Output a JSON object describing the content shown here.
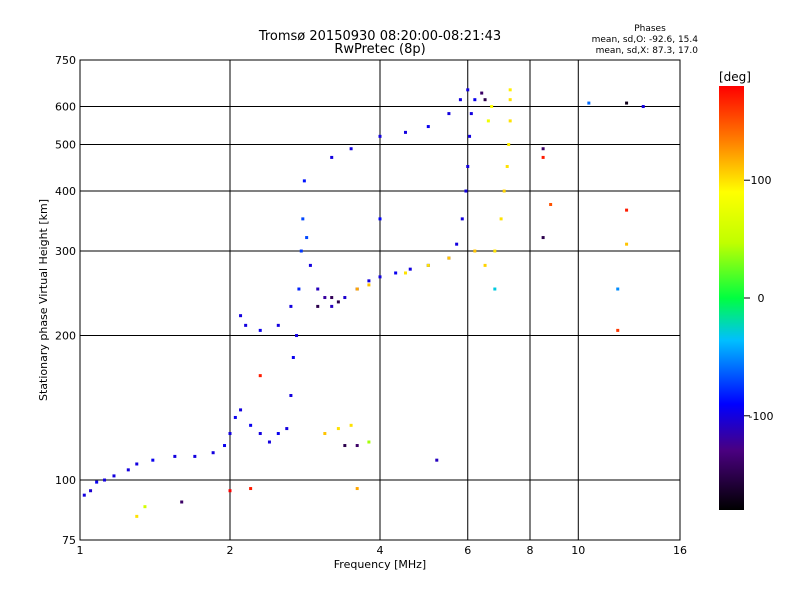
{
  "chart_data": {
    "type": "scatter",
    "title": "Tromsø 20150930 08:20:00-08:21:43",
    "subtitle": "RwPretec (8p)",
    "xlabel": "Frequency [MHz]",
    "ylabel": "Stationary phase Virtual Height [km]",
    "x_scale": "log2",
    "y_scale": "log",
    "xlim": [
      1,
      16
    ],
    "ylim": [
      75,
      750
    ],
    "x_ticks": [
      1,
      2,
      4,
      6,
      8,
      10,
      16
    ],
    "y_ticks": [
      75,
      100,
      200,
      300,
      400,
      500,
      600,
      750
    ],
    "x_gridlines": [
      2,
      4,
      6,
      8,
      10
    ],
    "y_gridlines": [
      100,
      200,
      300,
      400,
      500,
      600
    ],
    "grid": true,
    "phase_stats": {
      "heading": "Phases",
      "line_o": "mean, sd,O: -92.6, 15.4",
      "line_x": "mean, sd,X: 87.3, 17.0"
    },
    "colorbar": {
      "label": "[deg]",
      "range": [
        -180,
        180
      ],
      "ticks": [
        100,
        0,
        -100
      ]
    },
    "color_encoding": "phase in degrees",
    "series": [
      {
        "points": [
          [
            1.02,
            93,
            -100
          ],
          [
            1.05,
            95,
            -105
          ],
          [
            1.08,
            99,
            -95
          ],
          [
            1.12,
            100,
            -100
          ],
          [
            1.17,
            102,
            -100
          ],
          [
            1.25,
            105,
            -100
          ],
          [
            1.3,
            108,
            -100
          ],
          [
            1.4,
            110,
            -95
          ],
          [
            1.55,
            112,
            -100
          ],
          [
            1.7,
            112,
            -100
          ],
          [
            1.85,
            114,
            -100
          ],
          [
            1.95,
            118,
            -95
          ],
          [
            2.0,
            125,
            -100
          ],
          [
            2.05,
            135,
            -95
          ],
          [
            2.1,
            140,
            -100
          ],
          [
            2.2,
            130,
            -95
          ],
          [
            2.3,
            125,
            -100
          ],
          [
            2.4,
            120,
            -100
          ],
          [
            2.5,
            125,
            -95
          ],
          [
            2.6,
            128,
            -100
          ],
          [
            2.65,
            150,
            -100
          ],
          [
            2.68,
            180,
            -95
          ],
          [
            2.72,
            200,
            -100
          ],
          [
            2.75,
            250,
            -80
          ],
          [
            2.78,
            300,
            -75
          ],
          [
            2.8,
            350,
            -70
          ],
          [
            2.82,
            420,
            -85
          ],
          [
            2.85,
            320,
            -70
          ],
          [
            2.9,
            280,
            -100
          ],
          [
            3.0,
            250,
            -110
          ],
          [
            3.1,
            240,
            -120
          ],
          [
            3.2,
            230,
            -110
          ],
          [
            3.4,
            240,
            -105
          ],
          [
            3.6,
            250,
            -100
          ],
          [
            3.8,
            260,
            -100
          ],
          [
            4.0,
            265,
            -100
          ],
          [
            4.3,
            270,
            -95
          ],
          [
            4.6,
            275,
            -100
          ],
          [
            5.0,
            280,
            -100
          ],
          [
            5.5,
            290,
            -100
          ],
          [
            5.7,
            310,
            -100
          ],
          [
            5.85,
            350,
            -100
          ],
          [
            5.95,
            400,
            -100
          ],
          [
            6.0,
            450,
            -100
          ],
          [
            6.05,
            520,
            -100
          ],
          [
            6.1,
            580,
            -100
          ],
          [
            6.2,
            620,
            -95
          ],
          [
            2.1,
            220,
            -100
          ],
          [
            2.15,
            210,
            -100
          ],
          [
            2.3,
            205,
            -95
          ],
          [
            2.5,
            210,
            -100
          ],
          [
            2.65,
            230,
            -100
          ],
          [
            3.2,
            470,
            -100
          ],
          [
            3.5,
            490,
            -100
          ],
          [
            4.0,
            520,
            -100
          ],
          [
            4.5,
            530,
            -100
          ],
          [
            5.0,
            545,
            -95
          ],
          [
            5.5,
            580,
            -100
          ],
          [
            5.8,
            620,
            -100
          ],
          [
            6.0,
            650,
            -100
          ]
        ]
      },
      {
        "points": [
          [
            4.5,
            270,
            100
          ],
          [
            5.0,
            280,
            100
          ],
          [
            5.5,
            290,
            110
          ],
          [
            6.2,
            300,
            110
          ],
          [
            6.5,
            280,
            105
          ],
          [
            6.8,
            300,
            100
          ],
          [
            7.0,
            350,
            100
          ],
          [
            7.1,
            400,
            105
          ],
          [
            7.2,
            450,
            100
          ],
          [
            7.25,
            500,
            95
          ],
          [
            7.3,
            560,
            100
          ],
          [
            7.3,
            620,
            100
          ],
          [
            7.3,
            650,
            95
          ],
          [
            6.6,
            560,
            80
          ],
          [
            6.7,
            600,
            90
          ],
          [
            3.1,
            125,
            110
          ],
          [
            3.3,
            128,
            100
          ],
          [
            3.5,
            130,
            100
          ],
          [
            3.6,
            250,
            120
          ],
          [
            3.8,
            255,
            110
          ]
        ]
      },
      {
        "points": [
          [
            3.4,
            118,
            -150
          ],
          [
            3.6,
            118,
            -140
          ],
          [
            6.4,
            640,
            -140
          ],
          [
            6.5,
            620,
            -150
          ],
          [
            3.0,
            230,
            -150
          ],
          [
            3.2,
            240,
            -145
          ],
          [
            3.3,
            235,
            -150
          ]
        ]
      },
      {
        "points": [
          [
            8.5,
            490,
            -140
          ],
          [
            8.5,
            470,
            170
          ],
          [
            8.8,
            375,
            150
          ],
          [
            8.5,
            320,
            -150
          ],
          [
            12.5,
            365,
            170
          ],
          [
            12.5,
            310,
            110
          ],
          [
            12.5,
            610,
            -170
          ],
          [
            13.5,
            600,
            -100
          ],
          [
            10.5,
            610,
            -60
          ],
          [
            12.0,
            250,
            -50
          ],
          [
            12.0,
            205,
            160
          ],
          [
            2.3,
            165,
            170
          ],
          [
            2.0,
            95,
            180
          ],
          [
            2.2,
            96,
            170
          ],
          [
            1.6,
            90,
            -140
          ],
          [
            1.35,
            88,
            60
          ],
          [
            1.3,
            84,
            100
          ],
          [
            3.8,
            120,
            40
          ],
          [
            6.8,
            250,
            -30
          ],
          [
            4.0,
            350,
            -90
          ],
          [
            5.2,
            110,
            -110
          ],
          [
            3.6,
            96,
            120
          ]
        ]
      }
    ]
  }
}
